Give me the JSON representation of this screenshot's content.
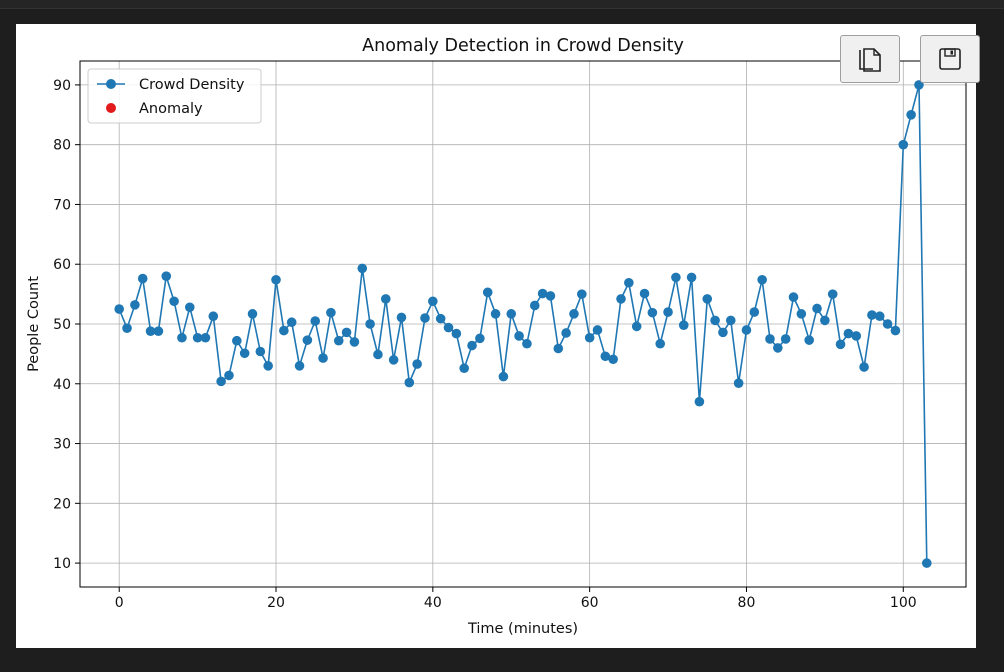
{
  "toolbar": {
    "copy_icon": "copy-icon",
    "save_icon": "save-icon"
  },
  "chart_data": {
    "type": "line",
    "title": "Anomaly Detection in Crowd Density",
    "xlabel": "Time (minutes)",
    "ylabel": "People Count",
    "xlim": [
      -5,
      108
    ],
    "ylim": [
      6,
      94
    ],
    "xticks": [
      0,
      20,
      40,
      60,
      80,
      100
    ],
    "yticks": [
      10,
      20,
      30,
      40,
      50,
      60,
      70,
      80,
      90
    ],
    "grid": true,
    "legend_position": "top-left",
    "legend": [
      {
        "label": "Crowd Density",
        "color": "#1f77b4",
        "marker": "line-dot"
      },
      {
        "label": "Anomaly",
        "color": "#e31a1c",
        "marker": "dot"
      }
    ],
    "series": [
      {
        "name": "Crowd Density",
        "color": "#1f77b4",
        "x": [
          0,
          1,
          2,
          3,
          4,
          5,
          6,
          7,
          8,
          9,
          10,
          11,
          12,
          13,
          14,
          15,
          16,
          17,
          18,
          19,
          20,
          21,
          22,
          23,
          24,
          25,
          26,
          27,
          28,
          29,
          30,
          31,
          32,
          33,
          34,
          35,
          36,
          37,
          38,
          39,
          40,
          41,
          42,
          43,
          44,
          45,
          46,
          47,
          48,
          49,
          50,
          51,
          52,
          53,
          54,
          55,
          56,
          57,
          58,
          59,
          60,
          61,
          62,
          63,
          64,
          65,
          66,
          67,
          68,
          69,
          70,
          71,
          72,
          73,
          74,
          75,
          76,
          77,
          78,
          79,
          80,
          81,
          82,
          83,
          84,
          85,
          86,
          87,
          88,
          89,
          90,
          91,
          92,
          93,
          94,
          95,
          96,
          97,
          98,
          99,
          100,
          101,
          102,
          103
        ],
        "y": [
          52.5,
          49.3,
          53.2,
          57.6,
          48.8,
          48.8,
          58.0,
          53.8,
          47.7,
          52.8,
          47.7,
          47.7,
          51.3,
          40.4,
          41.4,
          47.2,
          45.1,
          51.7,
          45.4,
          43.0,
          57.4,
          48.9,
          50.3,
          43.0,
          47.3,
          50.5,
          44.3,
          51.9,
          47.2,
          48.6,
          47.0,
          59.3,
          50.0,
          44.9,
          54.2,
          44.0,
          51.1,
          40.2,
          43.3,
          51.0,
          53.8,
          50.9,
          49.4,
          48.4,
          42.6,
          46.4,
          47.6,
          55.3,
          51.7,
          41.2,
          51.7,
          48.0,
          46.7,
          53.1,
          55.1,
          54.7,
          45.9,
          48.5,
          51.7,
          55.0,
          47.7,
          49.0,
          44.6,
          44.1,
          54.2,
          56.9,
          49.6,
          55.1,
          51.9,
          46.7,
          52.0,
          57.8,
          49.8,
          57.8,
          37.0,
          54.2,
          50.6,
          48.6,
          50.6,
          40.1,
          49.0,
          52.0,
          57.4,
          47.5,
          46.0,
          47.5,
          54.5,
          51.7,
          47.3,
          52.6,
          50.6,
          55.0,
          46.6,
          48.4,
          48.0,
          42.8,
          51.5,
          51.3,
          50.0,
          48.9,
          80.0,
          85.0,
          90.0,
          10.0
        ]
      },
      {
        "name": "Anomaly",
        "color": "#e31a1c",
        "x": [],
        "y": []
      }
    ]
  }
}
